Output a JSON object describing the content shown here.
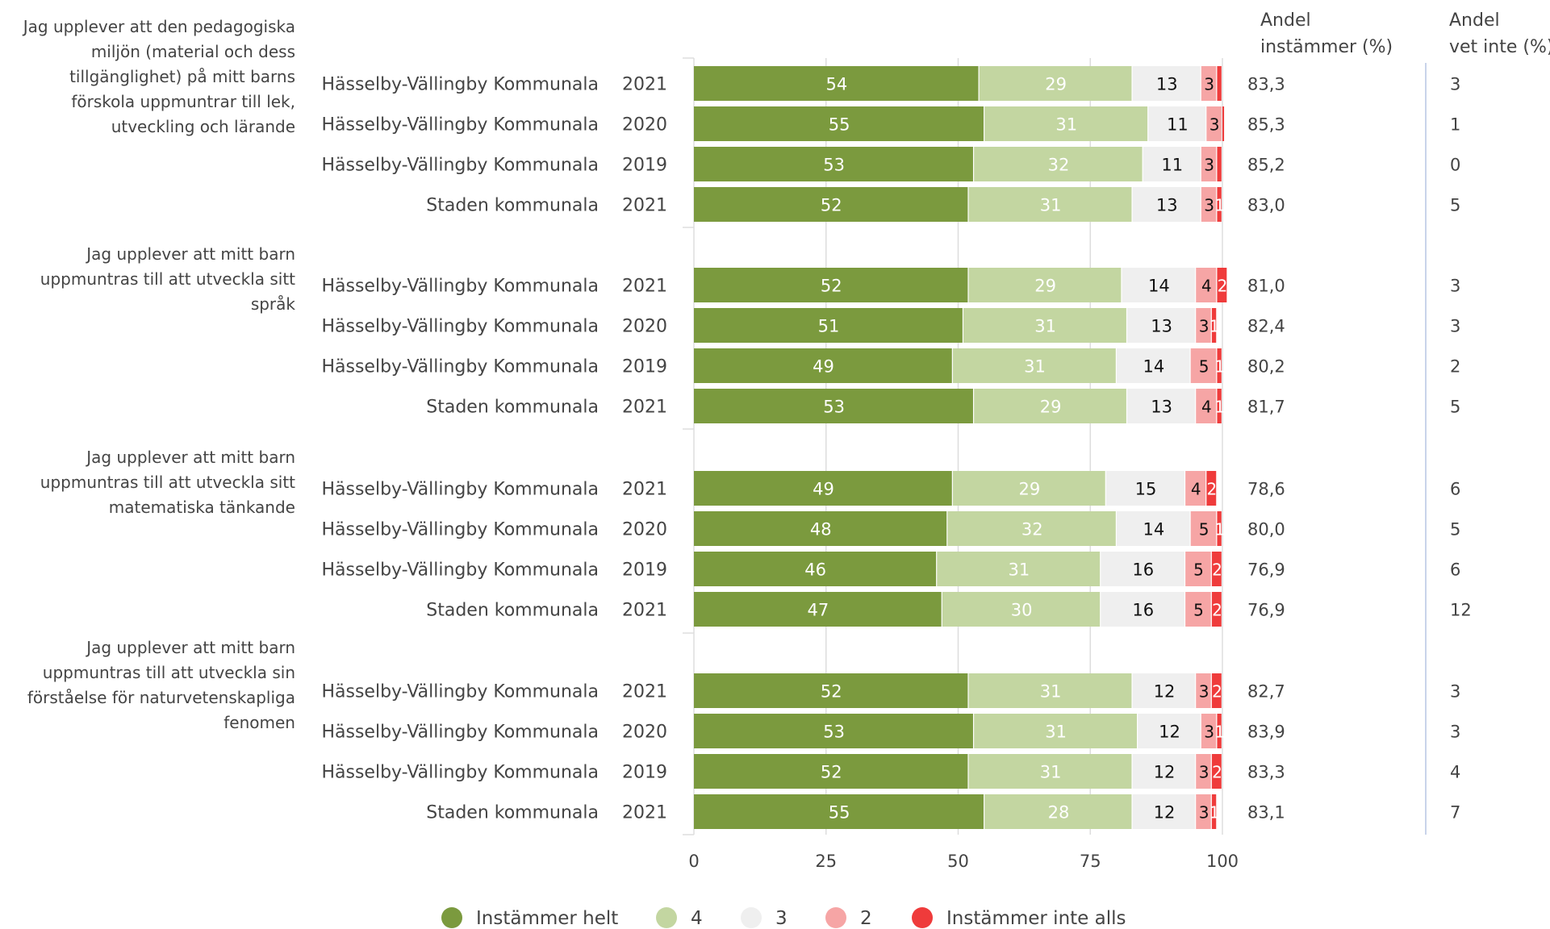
{
  "colors": {
    "instammer_helt": "#7b9a3e",
    "four": "#c3d6a1",
    "three": "#efefef",
    "two": "#f6a5a5",
    "instammer_inte_alls": "#ef3b3b",
    "grid": "#dddddd",
    "divider": "#c9d3ea"
  },
  "header": {
    "andel_instammer": [
      "Andel",
      "instämmer (%)"
    ],
    "andel_vet_inte": [
      "Andel",
      "vet inte (%)"
    ]
  },
  "chart_data": {
    "type": "bar",
    "orientation": "horizontal",
    "stacked": true,
    "xlim": [
      0,
      100
    ],
    "x_ticks": [
      "0",
      "25",
      "50",
      "75",
      "100"
    ],
    "legend_position": "bottom",
    "series_names": [
      "Instämmer helt",
      "4",
      "3",
      "2",
      "Instämmer inte alls"
    ],
    "groups": [
      {
        "question": [
          "Jag upplever att den pedagogiska",
          "miljön (material och dess",
          "tillgänglighet) på mitt barns",
          "förskola uppmuntrar till lek,",
          "utveckling och lärande"
        ],
        "rows": [
          {
            "unit": "Hässelby-Vällingby Kommunala",
            "year": "2021",
            "values": [
              54,
              29,
              13,
              3,
              1
            ],
            "labels": [
              "54",
              "29",
              "13",
              "3",
              ""
            ],
            "andel_instammer": "83,3",
            "andel_vet_inte": "3"
          },
          {
            "unit": "Hässelby-Vällingby Kommunala",
            "year": "2020",
            "values": [
              55,
              31,
              11,
              3,
              0.5
            ],
            "labels": [
              "55",
              "31",
              "11",
              "3",
              ""
            ],
            "andel_instammer": "85,3",
            "andel_vet_inte": "1"
          },
          {
            "unit": "Hässelby-Vällingby Kommunala",
            "year": "2019",
            "values": [
              53,
              32,
              11,
              3,
              1
            ],
            "labels": [
              "53",
              "32",
              "11",
              "3",
              ""
            ],
            "andel_instammer": "85,2",
            "andel_vet_inte": "0"
          },
          {
            "unit": "Staden kommunala",
            "year": "2021",
            "values": [
              52,
              31,
              13,
              3,
              1
            ],
            "labels": [
              "52",
              "31",
              "13",
              "3",
              "1"
            ],
            "andel_instammer": "83,0",
            "andel_vet_inte": "5"
          }
        ]
      },
      {
        "question": [
          "Jag upplever att mitt barn",
          "uppmuntras till att utveckla sitt",
          "språk"
        ],
        "rows": [
          {
            "unit": "Hässelby-Vällingby Kommunala",
            "year": "2021",
            "values": [
              52,
              29,
              14,
              4,
              2
            ],
            "labels": [
              "52",
              "29",
              "14",
              "4",
              "2"
            ],
            "andel_instammer": "81,0",
            "andel_vet_inte": "3"
          },
          {
            "unit": "Hässelby-Vällingby Kommunala",
            "year": "2020",
            "values": [
              51,
              31,
              13,
              3,
              1
            ],
            "labels": [
              "51",
              "31",
              "13",
              "3",
              "1"
            ],
            "andel_instammer": "82,4",
            "andel_vet_inte": "3"
          },
          {
            "unit": "Hässelby-Vällingby Kommunala",
            "year": "2019",
            "values": [
              49,
              31,
              14,
              5,
              1
            ],
            "labels": [
              "49",
              "31",
              "14",
              "5",
              "1"
            ],
            "andel_instammer": "80,2",
            "andel_vet_inte": "2"
          },
          {
            "unit": "Staden kommunala",
            "year": "2021",
            "values": [
              53,
              29,
              13,
              4,
              1
            ],
            "labels": [
              "53",
              "29",
              "13",
              "4",
              "1"
            ],
            "andel_instammer": "81,7",
            "andel_vet_inte": "5"
          }
        ]
      },
      {
        "question": [
          "Jag upplever att mitt barn",
          "uppmuntras till att utveckla sitt",
          "matematiska tänkande"
        ],
        "rows": [
          {
            "unit": "Hässelby-Vällingby Kommunala",
            "year": "2021",
            "values": [
              49,
              29,
              15,
              4,
              2
            ],
            "labels": [
              "49",
              "29",
              "15",
              "4",
              "2"
            ],
            "andel_instammer": "78,6",
            "andel_vet_inte": "6"
          },
          {
            "unit": "Hässelby-Vällingby Kommunala",
            "year": "2020",
            "values": [
              48,
              32,
              14,
              5,
              1
            ],
            "labels": [
              "48",
              "32",
              "14",
              "5",
              "1"
            ],
            "andel_instammer": "80,0",
            "andel_vet_inte": "5"
          },
          {
            "unit": "Hässelby-Vällingby Kommunala",
            "year": "2019",
            "values": [
              46,
              31,
              16,
              5,
              2
            ],
            "labels": [
              "46",
              "31",
              "16",
              "5",
              "2"
            ],
            "andel_instammer": "76,9",
            "andel_vet_inte": "6"
          },
          {
            "unit": "Staden kommunala",
            "year": "2021",
            "values": [
              47,
              30,
              16,
              5,
              2
            ],
            "labels": [
              "47",
              "30",
              "16",
              "5",
              "2"
            ],
            "andel_instammer": "76,9",
            "andel_vet_inte": "12"
          }
        ]
      },
      {
        "question": [
          "Jag upplever att mitt barn",
          "uppmuntras till att utveckla sin",
          "förståelse för naturvetenskapliga",
          "fenomen"
        ],
        "rows": [
          {
            "unit": "Hässelby-Vällingby Kommunala",
            "year": "2021",
            "values": [
              52,
              31,
              12,
              3,
              2
            ],
            "labels": [
              "52",
              "31",
              "12",
              "3",
              "2"
            ],
            "andel_instammer": "82,7",
            "andel_vet_inte": "3"
          },
          {
            "unit": "Hässelby-Vällingby Kommunala",
            "year": "2020",
            "values": [
              53,
              31,
              12,
              3,
              1
            ],
            "labels": [
              "53",
              "31",
              "12",
              "3",
              "1"
            ],
            "andel_instammer": "83,9",
            "andel_vet_inte": "3"
          },
          {
            "unit": "Hässelby-Vällingby Kommunala",
            "year": "2019",
            "values": [
              52,
              31,
              12,
              3,
              2
            ],
            "labels": [
              "52",
              "31",
              "12",
              "3",
              "2"
            ],
            "andel_instammer": "83,3",
            "andel_vet_inte": "4"
          },
          {
            "unit": "Staden kommunala",
            "year": "2021",
            "values": [
              55,
              28,
              12,
              3,
              1
            ],
            "labels": [
              "55",
              "28",
              "12",
              "3",
              "1"
            ],
            "andel_instammer": "83,1",
            "andel_vet_inte": "7"
          }
        ]
      }
    ]
  }
}
